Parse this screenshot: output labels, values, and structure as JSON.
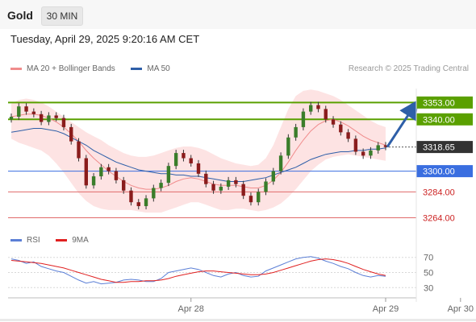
{
  "header": {
    "title": "Gold",
    "timeframe": "30 MIN"
  },
  "datetime": "Tuesday, April 29, 2025 9:20:16 AM CET",
  "legend": [
    {
      "label": "MA 20 + Bollinger Bands",
      "color": "#f08c8c"
    },
    {
      "label": "MA 50",
      "color": "#2e5fa8"
    }
  ],
  "credit": "Research © 2025 Trading Central",
  "rsi_legend": [
    {
      "label": "RSI",
      "color": "#5b7fd6"
    },
    {
      "label": "9MA",
      "color": "#e02020"
    }
  ],
  "colors": {
    "up": "#3a7d2a",
    "down": "#8a1c1c",
    "resistance": "#5aa000",
    "support": "#3a6ee0",
    "target": "#e06a6a",
    "band": "#fde3e3"
  },
  "chart_data": {
    "type": "candlestick",
    "price_axis": {
      "min": 3255,
      "max": 3370
    },
    "x_ticks": [
      {
        "label": "Apr 28",
        "index": 24
      },
      {
        "label": "Apr 29",
        "index": 50
      },
      {
        "label": "Apr 30",
        "index": 60
      }
    ],
    "price_labels": [
      {
        "label": "3353.00",
        "value": 3353.0,
        "style": "resistance"
      },
      {
        "label": "3340.00",
        "value": 3340.0,
        "style": "resistance"
      },
      {
        "label": "3318.65",
        "value": 3318.65,
        "style": "current"
      },
      {
        "label": "3300.00",
        "value": 3300.0,
        "style": "support"
      },
      {
        "label": "3284.00",
        "value": 3284.0,
        "style": "target"
      },
      {
        "label": "3264.00",
        "value": 3264.0,
        "style": "target"
      }
    ],
    "closes": [
      3342,
      3350,
      3346,
      3344,
      3338,
      3343,
      3341,
      3334,
      3323,
      3310,
      3289,
      3296,
      3303,
      3300,
      3293,
      3285,
      3276,
      3273,
      3279,
      3287,
      3291,
      3304,
      3314,
      3310,
      3306,
      3298,
      3290,
      3285,
      3288,
      3293,
      3290,
      3281,
      3276,
      3284,
      3292,
      3300,
      3312,
      3326,
      3334,
      3346,
      3351,
      3348,
      3340,
      3336,
      3330,
      3325,
      3315,
      3312,
      3316,
      3320,
      3318.65
    ],
    "ma20": [
      3342,
      3343,
      3344,
      3344,
      3343,
      3341,
      3338,
      3334,
      3329,
      3323,
      3316,
      3310,
      3305,
      3300,
      3296,
      3292,
      3289,
      3287,
      3286,
      3286,
      3287,
      3289,
      3292,
      3294,
      3295,
      3294,
      3292,
      3290,
      3289,
      3289,
      3289,
      3288,
      3287,
      3287,
      3289,
      3293,
      3299,
      3307,
      3316,
      3324,
      3331,
      3336,
      3339,
      3340,
      3338,
      3335,
      3331,
      3327,
      3324,
      3322,
      3320
    ],
    "ma50": [
      3330,
      3331,
      3332,
      3333,
      3333,
      3332,
      3331,
      3329,
      3326,
      3323,
      3320,
      3316,
      3313,
      3310,
      3307,
      3305,
      3303,
      3301,
      3300,
      3299,
      3298,
      3298,
      3297,
      3297,
      3296,
      3296,
      3295,
      3294,
      3293,
      3292,
      3292,
      3292,
      3293,
      3294,
      3295,
      3297,
      3299,
      3301,
      3303,
      3306,
      3309,
      3311,
      3313,
      3314,
      3315,
      3315,
      3316,
      3316,
      3317,
      3317,
      3318
    ],
    "bb_upper": [
      3352,
      3355,
      3356,
      3355,
      3353,
      3350,
      3346,
      3342,
      3338,
      3334,
      3330,
      3327,
      3324,
      3320,
      3317,
      3314,
      3312,
      3311,
      3311,
      3312,
      3314,
      3316,
      3318,
      3319,
      3319,
      3318,
      3316,
      3313,
      3310,
      3308,
      3306,
      3305,
      3304,
      3305,
      3310,
      3320,
      3334,
      3348,
      3358,
      3362,
      3363,
      3362,
      3360,
      3358,
      3355,
      3351,
      3347,
      3343,
      3339,
      3336,
      3334
    ],
    "bb_lower": [
      3325,
      3322,
      3320,
      3318,
      3316,
      3312,
      3306,
      3299,
      3291,
      3283,
      3277,
      3273,
      3271,
      3270,
      3270,
      3270,
      3270,
      3269,
      3268,
      3268,
      3268,
      3270,
      3272,
      3274,
      3276,
      3276,
      3274,
      3272,
      3270,
      3270,
      3271,
      3271,
      3270,
      3269,
      3270,
      3272,
      3275,
      3280,
      3286,
      3293,
      3300,
      3305,
      3309,
      3311,
      3312,
      3313,
      3312,
      3311,
      3310,
      3309,
      3308
    ],
    "rsi": [
      68,
      66,
      62,
      64,
      58,
      55,
      52,
      50,
      45,
      40,
      36,
      38,
      35,
      36,
      37,
      40,
      41,
      40,
      38,
      38,
      42,
      50,
      52,
      54,
      56,
      54,
      50,
      46,
      44,
      48,
      50,
      46,
      44,
      45,
      52,
      56,
      60,
      64,
      68,
      70,
      71,
      69,
      65,
      62,
      58,
      55,
      50,
      46,
      44,
      46,
      45
    ],
    "rsi_ma": [
      66,
      65,
      64,
      63,
      62,
      60,
      58,
      56,
      53,
      50,
      47,
      44,
      41,
      39,
      37,
      37,
      38,
      38,
      39,
      39,
      40,
      42,
      45,
      47,
      49,
      51,
      52,
      52,
      51,
      50,
      49,
      48,
      47,
      47,
      48,
      50,
      53,
      56,
      59,
      62,
      65,
      67,
      68,
      67,
      65,
      62,
      58,
      54,
      51,
      48,
      46
    ],
    "rsi_axis": [
      30,
      50,
      70
    ]
  }
}
